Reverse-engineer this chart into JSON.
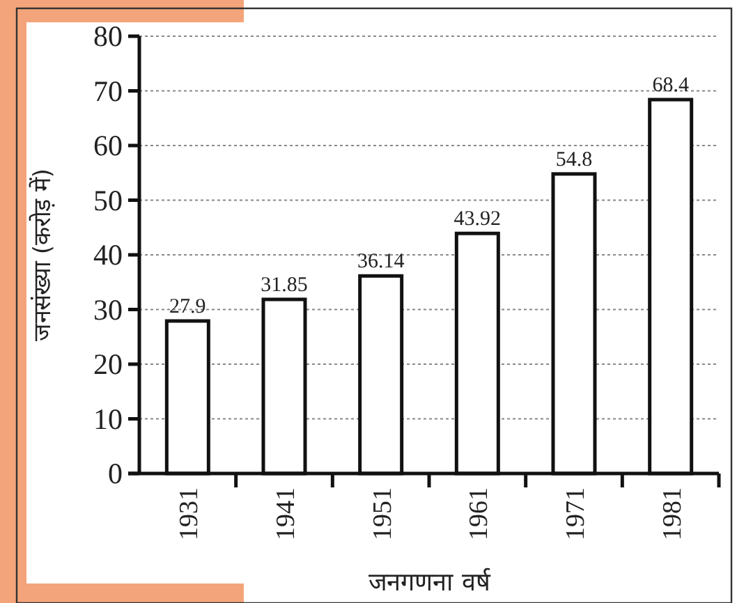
{
  "chart_data": {
    "type": "bar",
    "xlabel": "जनगणना वर्ष",
    "ylabel": "जनसंख्या (करोड़ में)",
    "categories": [
      "1931",
      "1941",
      "1951",
      "1961",
      "1971",
      "1981"
    ],
    "values": [
      27.9,
      31.85,
      36.14,
      43.92,
      54.8,
      68.4
    ],
    "color": "#ffffff",
    "ylim": [
      0,
      80
    ],
    "yticks": [
      0,
      10,
      20,
      30,
      40,
      50,
      60,
      70,
      80
    ],
    "grid": "y",
    "data_labels": true
  }
}
